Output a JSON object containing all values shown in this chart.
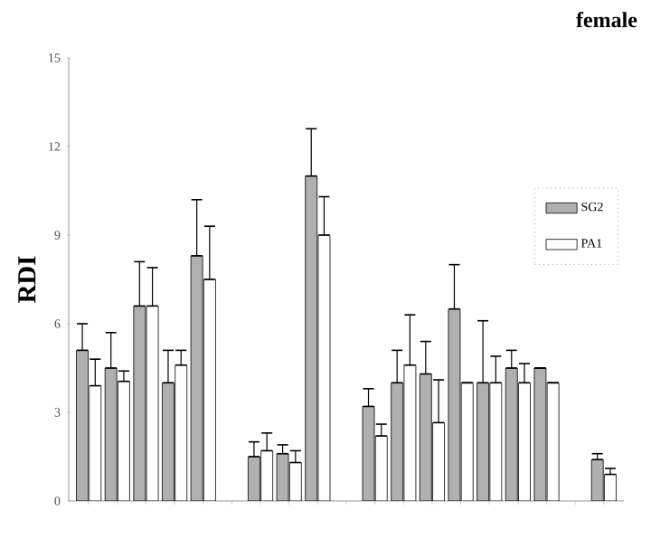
{
  "chart_data": {
    "type": "bar",
    "title": "female",
    "ylabel": "RDI",
    "categories": [
      null,
      null,
      null,
      null,
      null,
      null,
      null,
      null,
      null,
      null,
      null,
      null,
      null,
      null,
      null,
      null,
      null,
      null,
      null
    ],
    "series": [
      {
        "name": "SG2",
        "color": "#b0b0b0",
        "values": [
          5.1,
          4.5,
          6.6,
          4.0,
          8.3,
          null,
          1.5,
          1.6,
          11.0,
          null,
          3.2,
          4.0,
          4.3,
          6.5,
          4.0,
          4.5,
          4.5,
          null,
          1.4
        ],
        "errors": [
          [
            5.1,
            6.0
          ],
          [
            4.5,
            5.7
          ],
          [
            6.6,
            8.1
          ],
          [
            4.0,
            5.1
          ],
          [
            8.3,
            10.2
          ],
          null,
          [
            1.5,
            2.0
          ],
          [
            1.6,
            1.9
          ],
          [
            11.0,
            12.6
          ],
          null,
          [
            3.2,
            3.8
          ],
          [
            4.0,
            5.1
          ],
          [
            4.3,
            5.4
          ],
          [
            6.5,
            8.0
          ],
          [
            4.0,
            6.1
          ],
          [
            4.5,
            5.1
          ],
          null,
          null,
          [
            1.4,
            1.6
          ]
        ]
      },
      {
        "name": "PA1",
        "color": "#ffffff",
        "values": [
          3.9,
          4.05,
          6.6,
          4.6,
          7.5,
          null,
          1.7,
          1.3,
          9.0,
          null,
          2.2,
          4.6,
          2.65,
          4.0,
          4.0,
          4.0,
          4.0,
          null,
          0.9
        ],
        "errors": [
          [
            3.9,
            4.8
          ],
          [
            4.05,
            4.4
          ],
          [
            6.6,
            7.9
          ],
          [
            4.6,
            5.1
          ],
          [
            7.5,
            9.3
          ],
          null,
          [
            1.7,
            2.3
          ],
          [
            1.3,
            1.7
          ],
          [
            9.0,
            10.3
          ],
          null,
          [
            2.2,
            2.6
          ],
          [
            4.6,
            6.3
          ],
          [
            2.65,
            4.1
          ],
          null,
          [
            4.0,
            4.9
          ],
          [
            4.0,
            4.65
          ],
          null,
          null,
          [
            0.9,
            1.1
          ]
        ]
      }
    ],
    "ylim": [
      0,
      15
    ],
    "yticks": [
      0,
      3,
      6,
      9,
      12,
      15
    ],
    "grid": false,
    "legend": "right"
  }
}
